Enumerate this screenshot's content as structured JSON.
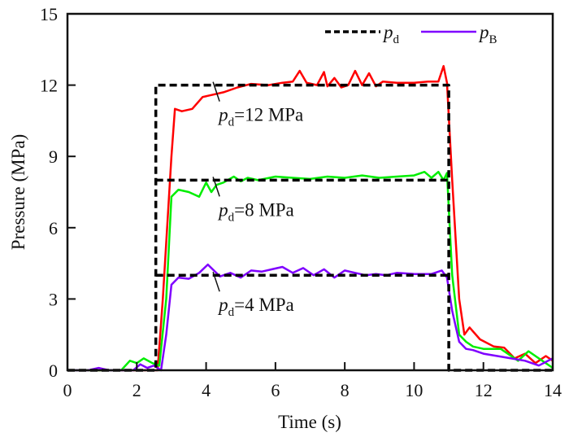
{
  "chart_data": {
    "type": "line",
    "title": "",
    "xlabel": "Time (s)",
    "ylabel": "Pressure (MPa)",
    "xlim": [
      0,
      14
    ],
    "ylim": [
      0,
      15
    ],
    "xticks": [
      0,
      2,
      4,
      6,
      8,
      10,
      12,
      14
    ],
    "yticks": [
      0,
      3,
      6,
      9,
      12,
      15
    ],
    "grid": false,
    "legend": {
      "placement": "top-right",
      "entries": [
        {
          "symbol": "p",
          "subscript": "d",
          "style": "dashed",
          "color": "#000000"
        },
        {
          "symbol": "p",
          "subscript": "B",
          "style": "solid",
          "color": "#7f00ff"
        }
      ]
    },
    "annotations": [
      {
        "symbol": "p",
        "subscript": "d",
        "text": "=12 MPa",
        "x": 4.2,
        "y": 12
      },
      {
        "symbol": "p",
        "subscript": "d",
        "text": "=8 MPa",
        "x": 4.2,
        "y": 8
      },
      {
        "symbol": "p",
        "subscript": "d",
        "text": "=4 MPa",
        "x": 4.2,
        "y": 4
      }
    ],
    "series": [
      {
        "name": "pd (12 MPa)",
        "style": "dashed",
        "color": "#000000",
        "x": [
          0,
          2.55,
          2.55,
          11.0,
          11.0,
          14
        ],
        "y": [
          0,
          0,
          12,
          12,
          0,
          0
        ]
      },
      {
        "name": "pd (8 MPa)",
        "style": "dashed",
        "color": "#000000",
        "x": [
          2.55,
          11.0
        ],
        "y": [
          8,
          8
        ]
      },
      {
        "name": "pd (4 MPa)",
        "style": "dashed",
        "color": "#000000",
        "x": [
          2.55,
          11.0
        ],
        "y": [
          4,
          4
        ]
      },
      {
        "name": "pB (12 MPa)",
        "style": "solid",
        "color": "#ff0000",
        "x": [
          0,
          2.6,
          2.75,
          3.0,
          3.1,
          3.3,
          3.6,
          3.9,
          4.2,
          4.5,
          4.9,
          5.3,
          5.8,
          6.2,
          6.5,
          6.7,
          6.9,
          7.2,
          7.4,
          7.5,
          7.7,
          7.9,
          8.1,
          8.3,
          8.5,
          8.7,
          8.9,
          9.1,
          9.5,
          10.0,
          10.4,
          10.7,
          10.85,
          10.95,
          11.1,
          11.3,
          11.45,
          11.6,
          11.9,
          12.3,
          12.6,
          12.9,
          13.2,
          13.5,
          13.8,
          14
        ],
        "y": [
          0,
          0,
          3,
          9,
          11,
          10.9,
          11,
          11.5,
          11.6,
          11.7,
          11.9,
          12.05,
          12.0,
          12.1,
          12.15,
          12.6,
          12.1,
          12.0,
          12.55,
          11.95,
          12.3,
          11.9,
          12.0,
          12.6,
          12.0,
          12.5,
          11.95,
          12.15,
          12.1,
          12.1,
          12.15,
          12.15,
          12.8,
          12.1,
          8,
          3,
          1.5,
          1.8,
          1.3,
          1.0,
          0.95,
          0.5,
          0.7,
          0.3,
          0.6,
          0.4
        ]
      },
      {
        "name": "pB (8 MPa)",
        "style": "solid",
        "color": "#00ee00",
        "x": [
          0,
          1.55,
          1.8,
          2.0,
          2.2,
          2.45,
          2.65,
          2.85,
          3.0,
          3.2,
          3.5,
          3.8,
          4.0,
          4.15,
          4.3,
          4.5,
          4.8,
          5.0,
          5.2,
          5.5,
          6.0,
          6.5,
          7.0,
          7.5,
          8.0,
          8.5,
          9.0,
          9.5,
          10.0,
          10.3,
          10.5,
          10.7,
          10.85,
          10.95,
          11.1,
          11.3,
          11.5,
          11.7,
          12.0,
          12.5,
          13.0,
          13.3,
          13.6,
          14
        ],
        "y": [
          0,
          0,
          0.4,
          0.3,
          0.5,
          0.3,
          0.2,
          3.0,
          7.3,
          7.6,
          7.5,
          7.3,
          7.9,
          7.5,
          7.8,
          7.9,
          8.15,
          7.95,
          8.1,
          8.0,
          8.15,
          8.1,
          8.05,
          8.15,
          8.1,
          8.2,
          8.1,
          8.15,
          8.2,
          8.35,
          8.1,
          8.35,
          8.0,
          8.3,
          4,
          1.5,
          1.2,
          1.0,
          0.9,
          0.9,
          0.4,
          0.8,
          0.5,
          0.1
        ]
      },
      {
        "name": "pB (4 MPa)",
        "style": "solid",
        "color": "#7f00ff",
        "x": [
          0,
          0.6,
          0.9,
          1.2,
          1.5,
          1.9,
          2.1,
          2.3,
          2.5,
          2.7,
          2.85,
          3.0,
          3.2,
          3.5,
          3.8,
          4.05,
          4.4,
          4.7,
          5.0,
          5.3,
          5.6,
          5.9,
          6.2,
          6.5,
          6.8,
          7.1,
          7.4,
          7.7,
          8.0,
          8.3,
          8.6,
          8.9,
          9.2,
          9.5,
          10.0,
          10.5,
          10.8,
          10.95,
          11.1,
          11.3,
          11.5,
          11.7,
          12.0,
          12.4,
          12.8,
          13.2,
          13.6,
          14
        ],
        "y": [
          0,
          0,
          0.1,
          0,
          0,
          0,
          0.25,
          0.1,
          0.2,
          0,
          1.5,
          3.6,
          3.9,
          3.85,
          4.1,
          4.45,
          3.95,
          4.1,
          3.9,
          4.2,
          4.15,
          4.25,
          4.35,
          4.1,
          4.3,
          4.0,
          4.25,
          3.9,
          4.2,
          4.1,
          4.0,
          4.05,
          4.0,
          4.1,
          4.05,
          4.05,
          4.2,
          3.9,
          2.5,
          1.2,
          0.9,
          0.85,
          0.7,
          0.6,
          0.5,
          0.4,
          0.2,
          0.5
        ]
      }
    ]
  }
}
